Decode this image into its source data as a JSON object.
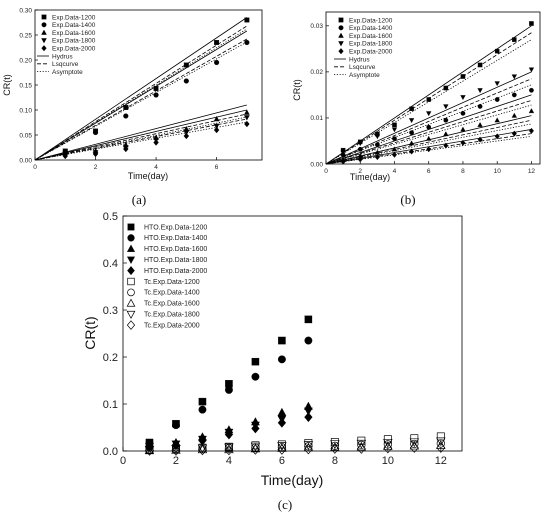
{
  "chart_data": [
    {
      "type": "scatter",
      "caption": "(a)",
      "xlabel": "Time(day)",
      "ylabel": "CR(t)",
      "xlim": [
        0,
        7.5
      ],
      "ylim": [
        0,
        0.3
      ],
      "xticks": [
        0,
        2,
        4,
        6
      ],
      "yticks": [
        0.0,
        0.05,
        0.1,
        0.15,
        0.2,
        0.25,
        0.3
      ],
      "ytick_labels": [
        "0.00",
        "0.05",
        "0.10",
        "0.15",
        "0.20",
        "0.25",
        "0.30"
      ],
      "legend_position": "top-left",
      "series": [
        {
          "name": "Exp.Data-1200",
          "marker": "square",
          "x": [
            1,
            2,
            3,
            4,
            5,
            6,
            7
          ],
          "y": [
            0.018,
            0.058,
            0.105,
            0.143,
            0.19,
            0.235,
            0.28
          ]
        },
        {
          "name": "Exp.Data-1400",
          "marker": "circle",
          "x": [
            1,
            2,
            3,
            4,
            5,
            6,
            7
          ],
          "y": [
            0.017,
            0.055,
            0.088,
            0.13,
            0.158,
            0.195,
            0.235
          ]
        },
        {
          "name": "Exp.Data-1600",
          "marker": "triangle-up",
          "x": [
            1,
            2,
            3,
            4,
            5,
            6,
            7
          ],
          "y": [
            0.015,
            0.018,
            0.03,
            0.045,
            0.062,
            0.082,
            0.095
          ]
        },
        {
          "name": "Exp.Data-1800",
          "marker": "triangle-down",
          "x": [
            1,
            2,
            3,
            4,
            5,
            6,
            7
          ],
          "y": [
            0.01,
            0.015,
            0.025,
            0.04,
            0.055,
            0.068,
            0.085
          ]
        },
        {
          "name": "Exp.Data-2000",
          "marker": "diamond",
          "x": [
            1,
            2,
            3,
            4,
            5,
            6,
            7
          ],
          "y": [
            0.008,
            0.012,
            0.022,
            0.035,
            0.048,
            0.06,
            0.072
          ]
        }
      ],
      "lines": [
        {
          "name": "Hydrus",
          "style": "solid",
          "segments": [
            [
              0,
              0,
              7,
              0.285
            ],
            [
              0,
              0,
              7,
              0.258
            ],
            [
              0,
              0,
              7,
              0.11
            ],
            [
              0,
              0,
              7,
              0.1
            ]
          ]
        },
        {
          "name": "Lsqcurve",
          "style": "dashed",
          "segments": [
            [
              0,
              0,
              7,
              0.268
            ],
            [
              0,
              0,
              7,
              0.242
            ],
            [
              0,
              0,
              7,
              0.092
            ],
            [
              0,
              0,
              7,
              0.082
            ]
          ]
        },
        {
          "name": "Asymptote",
          "style": "dotted",
          "segments": [
            [
              0,
              0,
              7,
              0.262
            ],
            [
              0,
              0,
              7,
              0.236
            ],
            [
              0,
              0,
              7,
              0.086
            ],
            [
              0,
              0,
              7,
              0.076
            ]
          ]
        }
      ]
    },
    {
      "type": "scatter",
      "caption": "(b)",
      "xlabel": "Time(day)",
      "ylabel": "CR(t)",
      "xlim": [
        0,
        12.5
      ],
      "ylim": [
        0,
        0.033
      ],
      "xticks": [
        0,
        2,
        4,
        6,
        8,
        10,
        12
      ],
      "yticks": [
        0.0,
        0.01,
        0.02,
        0.03
      ],
      "ytick_labels": [
        "0.00",
        "0.01",
        "0.02",
        "0.03"
      ],
      "legend_position": "top-left",
      "series": [
        {
          "name": "Exp.Data-1200",
          "marker": "square",
          "x": [
            1,
            2,
            3,
            4,
            5,
            6,
            7,
            8,
            9,
            10,
            11,
            12
          ],
          "y": [
            0.003,
            0.0048,
            0.0065,
            0.0085,
            0.012,
            0.014,
            0.0165,
            0.019,
            0.0215,
            0.0245,
            0.027,
            0.0305
          ]
        },
        {
          "name": "Exp.Data-1400",
          "marker": "circle",
          "x": [
            1,
            2,
            3,
            4,
            5,
            6,
            7,
            8,
            9,
            10,
            11,
            12
          ],
          "y": [
            0.002,
            0.0032,
            0.0042,
            0.0055,
            0.0068,
            0.008,
            0.0095,
            0.011,
            0.0125,
            0.014,
            0.015,
            0.016
          ]
        },
        {
          "name": "Exp.Data-1600",
          "marker": "triangle-up",
          "x": [
            1,
            2,
            3,
            4,
            5,
            6,
            7,
            8,
            9,
            10,
            11,
            12
          ],
          "y": [
            0.001,
            0.0018,
            0.0025,
            0.0032,
            0.0045,
            0.0055,
            0.0065,
            0.0075,
            0.0085,
            0.0095,
            0.0105,
            0.0115
          ]
        },
        {
          "name": "Exp.Data-1800",
          "marker": "triangle-down",
          "x": [
            1,
            2,
            3,
            4,
            5,
            6,
            7,
            8,
            9,
            10,
            11,
            12
          ],
          "y": [
            0.0025,
            0.0045,
            0.006,
            0.0075,
            0.0095,
            0.011,
            0.0125,
            0.0145,
            0.016,
            0.0175,
            0.019,
            0.0205
          ]
        },
        {
          "name": "Exp.Data-2000",
          "marker": "diamond",
          "x": [
            1,
            2,
            3,
            4,
            5,
            6,
            7,
            8,
            9,
            10,
            11,
            12
          ],
          "y": [
            0.0005,
            0.001,
            0.0015,
            0.002,
            0.0027,
            0.0032,
            0.004,
            0.0046,
            0.0053,
            0.006,
            0.0066,
            0.0072
          ]
        }
      ],
      "lines": [
        {
          "name": "Hydrus",
          "style": "solid",
          "segments": [
            [
              0,
              0,
              12,
              0.03
            ],
            [
              0,
              0,
              12,
              0.02
            ],
            [
              0,
              0,
              12,
              0.015
            ],
            [
              0,
              0,
              12,
              0.0105
            ],
            [
              0,
              0,
              12,
              0.0075
            ]
          ]
        },
        {
          "name": "Lsqcurve",
          "style": "dashed",
          "segments": [
            [
              0,
              0,
              12,
              0.0285
            ],
            [
              0,
              0,
              12,
              0.0185
            ],
            [
              0,
              0,
              12,
              0.0138
            ],
            [
              0,
              0,
              12,
              0.0095
            ],
            [
              0,
              0,
              12,
              0.0066
            ]
          ]
        },
        {
          "name": "Asymptote",
          "style": "dotted",
          "segments": [
            [
              0,
              0,
              12,
              0.027
            ],
            [
              0,
              0,
              12,
              0.0172
            ],
            [
              0,
              0,
              12,
              0.0128
            ],
            [
              0,
              0,
              12,
              0.0087
            ],
            [
              0,
              0,
              12,
              0.006
            ]
          ]
        }
      ]
    },
    {
      "type": "scatter",
      "caption": "(c)",
      "xlabel": "Time(day)",
      "ylabel": "CR(t)",
      "xlim": [
        0,
        12.8
      ],
      "ylim": [
        0,
        0.5
      ],
      "xticks": [
        0,
        2,
        4,
        6,
        8,
        10,
        12
      ],
      "yticks": [
        0.0,
        0.1,
        0.2,
        0.3,
        0.4,
        0.5
      ],
      "ytick_labels": [
        "0.0",
        "0.1",
        "0.2",
        "0.3",
        "0.4",
        "0.5"
      ],
      "legend_position": "top-left",
      "series": [
        {
          "name": "HTO.Exp.Data-1200",
          "marker": "square",
          "x": [
            1,
            2,
            3,
            4,
            5,
            6,
            7
          ],
          "y": [
            0.018,
            0.058,
            0.105,
            0.143,
            0.19,
            0.235,
            0.28
          ]
        },
        {
          "name": "HTO.Exp.Data-1400",
          "marker": "circle",
          "x": [
            1,
            2,
            3,
            4,
            5,
            6,
            7
          ],
          "y": [
            0.017,
            0.055,
            0.088,
            0.13,
            0.158,
            0.195,
            0.235
          ]
        },
        {
          "name": "HTO.Exp.Data-1600",
          "marker": "triangle-up",
          "x": [
            1,
            2,
            3,
            4,
            5,
            6,
            7
          ],
          "y": [
            0.015,
            0.018,
            0.03,
            0.045,
            0.062,
            0.082,
            0.095
          ]
        },
        {
          "name": "HTO.Exp.Data-1800",
          "marker": "triangle-down",
          "x": [
            1,
            2,
            3,
            4,
            5,
            6,
            7
          ],
          "y": [
            0.01,
            0.015,
            0.025,
            0.04,
            0.055,
            0.068,
            0.085
          ]
        },
        {
          "name": "HTO.Exp.Data-2000",
          "marker": "diamond",
          "x": [
            1,
            2,
            3,
            4,
            5,
            6,
            7
          ],
          "y": [
            0.008,
            0.012,
            0.022,
            0.035,
            0.048,
            0.06,
            0.072
          ]
        },
        {
          "name": "Tc.Exp.Data-1200",
          "marker": "square-open",
          "x": [
            1,
            2,
            3,
            4,
            5,
            6,
            7,
            8,
            9,
            10,
            11,
            12
          ],
          "y": [
            0.003,
            0.005,
            0.007,
            0.009,
            0.012,
            0.014,
            0.017,
            0.019,
            0.022,
            0.025,
            0.027,
            0.031
          ]
        },
        {
          "name": "Tc.Exp.Data-1400",
          "marker": "circle-open",
          "x": [
            1,
            2,
            3,
            4,
            5,
            6,
            7,
            8,
            9,
            10,
            11,
            12
          ],
          "y": [
            0.002,
            0.003,
            0.004,
            0.006,
            0.007,
            0.008,
            0.01,
            0.011,
            0.013,
            0.014,
            0.015,
            0.016
          ]
        },
        {
          "name": "Tc.Exp.Data-1600",
          "marker": "triangle-up-open",
          "x": [
            1,
            2,
            3,
            4,
            5,
            6,
            7,
            8,
            9,
            10,
            11,
            12
          ],
          "y": [
            0.001,
            0.002,
            0.003,
            0.003,
            0.005,
            0.006,
            0.007,
            0.008,
            0.009,
            0.01,
            0.011,
            0.012
          ]
        },
        {
          "name": "Tc.Exp.Data-1800",
          "marker": "triangle-down-open",
          "x": [
            1,
            2,
            3,
            4,
            5,
            6,
            7,
            8,
            9,
            10,
            11,
            12
          ],
          "y": [
            0.003,
            0.005,
            0.006,
            0.008,
            0.01,
            0.011,
            0.013,
            0.015,
            0.016,
            0.018,
            0.019,
            0.021
          ]
        },
        {
          "name": "Tc.Exp.Data-2000",
          "marker": "diamond-open",
          "x": [
            1,
            2,
            3,
            4,
            5,
            6,
            7,
            8,
            9,
            10,
            11,
            12
          ],
          "y": [
            0.001,
            0.001,
            0.002,
            0.002,
            0.003,
            0.003,
            0.004,
            0.005,
            0.005,
            0.006,
            0.007,
            0.007
          ]
        }
      ]
    }
  ]
}
